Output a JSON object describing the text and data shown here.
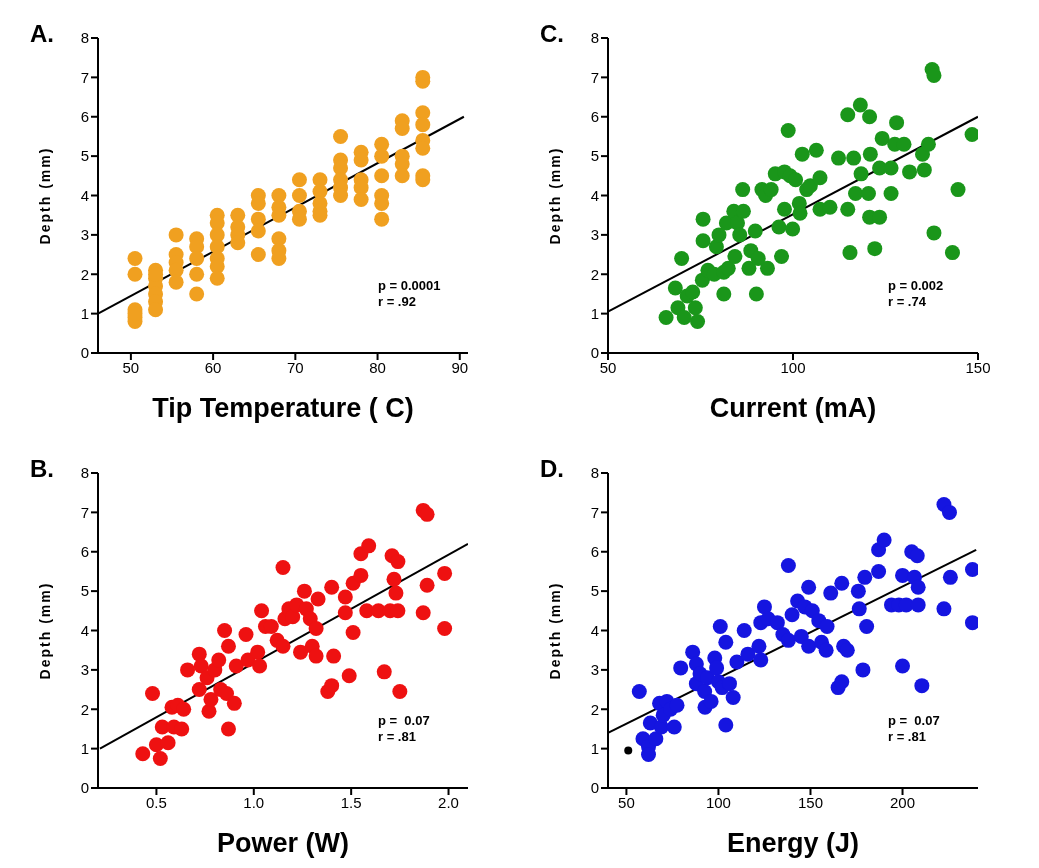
{
  "chart_data": [
    {
      "type": "scatter",
      "title": "A.",
      "xlabel": "Tip Temperature ( C)",
      "ylabel": "Depth (mm)",
      "xlim": [
        46,
        91
      ],
      "xticks": [
        50,
        60,
        70,
        80,
        90
      ],
      "ylim": [
        0,
        8
      ],
      "yticks": [
        0,
        1,
        2,
        3,
        4,
        5,
        6,
        7,
        8
      ],
      "marker": "circle",
      "annotations": [
        "p = 0.0001",
        "r = .92"
      ],
      "series": [
        {
          "color": "#f0a020",
          "x": [
            50.5,
            50.5,
            50.5,
            50.5,
            50.5,
            50.5,
            53,
            53,
            53,
            53,
            53,
            53,
            53,
            55.5,
            55.5,
            55.5,
            55.5,
            55.5,
            58,
            58,
            58,
            58,
            58,
            60.5,
            60.5,
            60.5,
            60.5,
            60.5,
            60.5,
            60.5,
            63,
            63,
            63,
            63,
            65.5,
            65.5,
            65.5,
            65.5,
            65.5,
            68,
            68,
            68,
            68,
            68,
            68,
            70.5,
            70.5,
            70.5,
            70.5,
            73,
            73,
            73,
            73,
            73,
            75.5,
            75.5,
            75.5,
            75.5,
            75.5,
            75.5,
            78,
            78,
            78,
            78,
            78,
            80.5,
            80.5,
            80.5,
            80.5,
            80.5,
            80.5,
            83,
            83,
            83,
            83,
            83,
            85.5,
            85.5,
            85.5,
            85.5,
            85.5,
            85.5,
            85.5,
            85.5
          ],
          "values": [
            2.4,
            2.0,
            1.1,
            0.9,
            0.8,
            1.0,
            2.1,
            1.9,
            1.7,
            1.5,
            1.3,
            1.1,
            2.0,
            3.0,
            2.5,
            2.3,
            2.1,
            1.8,
            2.9,
            2.7,
            2.4,
            2.0,
            1.5,
            3.5,
            3.3,
            3.0,
            2.7,
            2.4,
            2.2,
            1.9,
            3.5,
            3.2,
            3.0,
            2.8,
            4.0,
            3.8,
            3.4,
            3.1,
            2.5,
            4.0,
            3.7,
            3.5,
            2.9,
            2.6,
            2.4,
            4.4,
            4.0,
            3.6,
            3.4,
            4.4,
            4.1,
            3.8,
            3.6,
            3.5,
            5.5,
            4.9,
            4.7,
            4.4,
            4.2,
            4.0,
            5.1,
            4.9,
            4.4,
            4.2,
            3.9,
            5.3,
            5.0,
            4.5,
            4.0,
            3.8,
            3.4,
            5.9,
            5.7,
            5.0,
            4.8,
            4.5,
            7.0,
            6.9,
            6.1,
            5.8,
            5.4,
            5.2,
            4.5,
            4.4
          ]
        },
        {
          "type": "line",
          "marker": "none",
          "color": "#000000",
          "x": [
            46,
            90.5
          ],
          "values": [
            1.0,
            6.0
          ]
        }
      ]
    },
    {
      "type": "scatter",
      "title": "C.",
      "xlabel": "Current (mA)",
      "ylabel": "Depth (mm)",
      "xlim": [
        50,
        150
      ],
      "xticks": [
        50,
        100,
        150
      ],
      "ylim": [
        0,
        8
      ],
      "yticks": [
        0,
        1,
        2,
        3,
        4,
        5,
        6,
        7,
        8
      ],
      "marker": "circle",
      "annotations": [
        "p = 0.002",
        "r = .74"
      ],
      "series": [
        {
          "color": "#1a961a",
          "x": [
            65.7,
            68.2,
            69.9,
            68.9,
            70.6,
            71.4,
            72.9,
            73.6,
            74.2,
            75.7,
            75.7,
            75.5,
            77,
            78.7,
            79.3,
            80,
            81.3,
            81.3,
            82.5,
            82,
            84,
            85,
            85.6,
            84.3,
            86.4,
            86.6,
            88.1,
            88.6,
            89.8,
            90.1,
            90.6,
            91.6,
            92.6,
            93.1,
            94.1,
            95.2,
            96.2,
            96.9,
            97.7,
            98.7,
            97.7,
            99.2,
            99.9,
            100.7,
            101.7,
            101.9,
            102.5,
            103.7,
            104.7,
            106.3,
            107.3,
            107.3,
            110,
            112.3,
            114.8,
            114.8,
            115.4,
            116.4,
            116.9,
            118.2,
            118.4,
            120.4,
            120.7,
            120.9,
            120.7,
            122.1,
            123.4,
            123.4,
            124.1,
            126.5,
            126.5,
            127.5,
            128,
            130,
            131.5,
            135,
            135.5,
            136.6,
            137.6,
            138.1,
            138.1,
            143.1,
            144.6,
            148.4
          ],
          "values": [
            0.9,
            1.65,
            2.4,
            1.15,
            0.9,
            1.45,
            1.55,
            1.15,
            0.8,
            3.4,
            2.85,
            1.85,
            2.1,
            2.0,
            2.7,
            3.0,
            2.05,
            1.5,
            2.15,
            3.3,
            3.6,
            3.3,
            3.0,
            2.45,
            4.15,
            3.6,
            2.15,
            2.6,
            3.1,
            1.5,
            2.4,
            4.15,
            4.0,
            2.15,
            4.15,
            4.55,
            3.2,
            2.45,
            3.65,
            5.65,
            4.6,
            4.5,
            3.15,
            4.4,
            3.8,
            3.55,
            5.05,
            4.15,
            4.25,
            5.15,
            3.65,
            4.45,
            3.7,
            4.95,
            6.05,
            3.65,
            2.55,
            4.95,
            4.05,
            6.3,
            4.55,
            4.05,
            6.0,
            5.05,
            3.45,
            2.65,
            3.45,
            4.7,
            5.45,
            4.05,
            4.7,
            5.3,
            5.85,
            5.3,
            4.6,
            5.05,
            4.65,
            5.3,
            7.2,
            7.05,
            3.05,
            2.55,
            4.15,
            5.55
          ]
        },
        {
          "type": "line",
          "marker": "none",
          "color": "#000000",
          "x": [
            50,
            150
          ],
          "values": [
            1.05,
            6.0
          ]
        }
      ]
    },
    {
      "type": "scatter",
      "title": "B.",
      "xlabel": "Power (W)",
      "ylabel": "Depth (mm)",
      "xlim": [
        0.2,
        2.1
      ],
      "xticks": [
        {
          "value": 0.5,
          "label": "0.5"
        },
        {
          "value": 1,
          "label": "1.0"
        },
        {
          "value": 1.5,
          "label": "1.5"
        },
        {
          "value": 2,
          "label": "2.0"
        }
      ],
      "ylim": [
        0,
        8
      ],
      "yticks": [
        0,
        1,
        2,
        3,
        4,
        5,
        6,
        7,
        8
      ],
      "marker": "circle",
      "annotations": [
        "p =  0.07",
        "r = .81"
      ],
      "series": [
        {
          "color": "#ee1111",
          "x": [
            0.43,
            0.48,
            0.5,
            0.52,
            0.53,
            0.56,
            0.58,
            0.59,
            0.61,
            0.63,
            0.64,
            0.66,
            0.72,
            0.72,
            0.73,
            0.76,
            0.77,
            0.78,
            0.8,
            0.82,
            0.83,
            0.85,
            0.86,
            0.87,
            0.87,
            0.9,
            0.91,
            0.96,
            0.97,
            1.02,
            1.03,
            1.04,
            1.06,
            1.09,
            1.12,
            1.15,
            1.15,
            1.16,
            1.18,
            1.2,
            1.22,
            1.24,
            1.26,
            1.27,
            1.29,
            1.3,
            1.32,
            1.33,
            1.32,
            1.38,
            1.4,
            1.4,
            1.41,
            1.47,
            1.47,
            1.49,
            1.51,
            1.51,
            1.55,
            1.55,
            1.59,
            1.58,
            1.67,
            1.64,
            1.7,
            1.72,
            1.71,
            1.74,
            1.75,
            1.73,
            1.74,
            1.87,
            1.87,
            1.89,
            1.89,
            1.98,
            1.98
          ],
          "values": [
            0.87,
            2.4,
            1.1,
            0.75,
            1.55,
            1.15,
            2.05,
            1.55,
            2.1,
            1.5,
            2.0,
            3.0,
            3.4,
            2.5,
            3.1,
            2.8,
            1.95,
            2.25,
            3.0,
            3.25,
            2.5,
            4.0,
            2.4,
            1.5,
            3.6,
            2.15,
            3.1,
            3.9,
            3.25,
            3.45,
            3.1,
            4.5,
            4.1,
            4.1,
            3.75,
            5.6,
            3.6,
            4.3,
            4.55,
            4.35,
            4.65,
            3.45,
            5.0,
            4.55,
            4.3,
            3.6,
            3.35,
            4.8,
            4.05,
            2.45,
            2.6,
            5.1,
            3.35,
            4.85,
            4.45,
            2.85,
            3.95,
            5.2,
            5.4,
            5.95,
            6.15,
            4.5,
            2.95,
            4.5,
            4.5,
            5.3,
            5.9,
            5.75,
            2.45,
            4.95,
            4.5,
            4.45,
            7.05,
            6.95,
            5.15,
            4.05,
            5.45
          ]
        },
        {
          "type": "line",
          "marker": "none",
          "color": "#000000",
          "x": [
            0.21,
            2.1
          ],
          "values": [
            1.0,
            6.2
          ]
        }
      ]
    },
    {
      "type": "scatter",
      "title": "D.",
      "xlabel": "Energy (J)",
      "ylabel": "Depth (mm)",
      "xlim": [
        40,
        241
      ],
      "xticks": [
        50,
        100,
        150,
        200
      ],
      "ylim": [
        0,
        8
      ],
      "yticks": [
        0,
        1,
        2,
        3,
        4,
        5,
        6,
        7,
        8
      ],
      "marker": "circle",
      "annotations": [
        "p =  0.07",
        "r = .81"
      ],
      "series": [
        {
          "color": "#1515e0",
          "x": [
            57,
            59,
            62,
            62,
            63,
            66,
            68,
            69,
            70,
            72,
            74,
            76,
            77.5,
            79.5,
            86,
            88,
            88,
            90,
            92.5,
            92.7,
            94,
            96,
            98,
            99,
            101,
            100,
            102,
            104,
            104,
            106,
            108,
            110,
            114,
            116,
            122,
            123,
            123,
            125,
            127,
            132,
            135,
            138,
            138,
            140,
            143,
            145,
            147,
            149,
            149,
            151,
            154.5,
            156,
            158.5,
            159,
            161,
            165,
            167,
            167,
            168,
            170,
            176,
            176.5,
            178.5,
            179.5,
            180.5,
            187,
            187,
            190,
            194,
            198,
            200,
            200,
            202,
            205,
            206.5,
            208,
            208.5,
            208.5,
            210.5,
            222.5,
            222.5,
            225.5,
            226,
            238,
            238
          ],
          "values": [
            2.45,
            1.25,
            1.05,
            0.85,
            1.65,
            1.25,
            2.15,
            1.55,
            1.85,
            2.2,
            2.0,
            1.55,
            2.1,
            3.05,
            3.45,
            3.15,
            2.65,
            2.9,
            2.45,
            2.05,
            2.8,
            2.2,
            3.3,
            3.05,
            4.1,
            2.7,
            2.55,
            1.6,
            3.7,
            2.65,
            2.3,
            3.2,
            4.0,
            3.4,
            3.6,
            3.25,
            4.2,
            4.6,
            4.3,
            4.2,
            3.9,
            5.65,
            3.75,
            4.4,
            4.75,
            3.85,
            4.6,
            5.1,
            3.6,
            4.5,
            4.25,
            3.7,
            3.5,
            4.1,
            4.95,
            2.55,
            2.7,
            5.2,
            3.6,
            3.5,
            5.0,
            4.55,
            3.0,
            5.35,
            4.1,
            5.5,
            6.05,
            6.3,
            4.65,
            4.65,
            3.1,
            5.4,
            4.65,
            6.0,
            5.35,
            5.9,
            4.65,
            5.1,
            2.6,
            4.55,
            7.2,
            7.0,
            5.35,
            5.55,
            4.2
          ]
        },
        {
          "color": "#000000",
          "x": [
            51
          ],
          "values": [
            0.95
          ]
        },
        {
          "type": "line",
          "marker": "none",
          "color": "#000000",
          "x": [
            40,
            240
          ],
          "values": [
            1.4,
            6.05
          ]
        }
      ]
    }
  ]
}
